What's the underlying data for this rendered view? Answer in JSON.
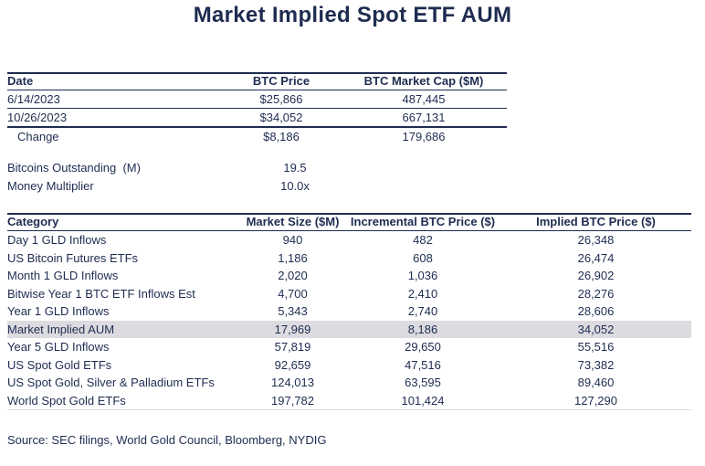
{
  "title": "Market Implied Spot ETF AUM",
  "table1": {
    "headers": [
      "Date",
      "BTC Price",
      "BTC Market Cap ($M)"
    ],
    "rows": [
      [
        "6/14/2023",
        "$25,866",
        "487,445"
      ],
      [
        "10/26/2023",
        "$34,052",
        "667,131"
      ]
    ],
    "change_row": [
      "Change",
      "$8,186",
      "179,686"
    ]
  },
  "assumptions": [
    {
      "label": "Bitcoins Outstanding  (M)",
      "value": "19.5"
    },
    {
      "label": "Money Multiplier",
      "value": "10.0x"
    }
  ],
  "table2": {
    "headers": [
      "Category",
      "Market Size ($M)",
      "Incremental BTC Price ($)",
      "Implied BTC Price ($)"
    ],
    "rows": [
      {
        "cells": [
          "Day 1 GLD Inflows",
          "940",
          "482",
          "26,348"
        ],
        "highlight": false
      },
      {
        "cells": [
          "US Bitcoin Futures ETFs",
          "1,186",
          "608",
          "26,474"
        ],
        "highlight": false
      },
      {
        "cells": [
          "Month 1 GLD Inflows",
          "2,020",
          "1,036",
          "26,902"
        ],
        "highlight": false
      },
      {
        "cells": [
          "Bitwise Year 1 BTC ETF Inflows Est",
          "4,700",
          "2,410",
          "28,276"
        ],
        "highlight": false
      },
      {
        "cells": [
          "Year 1 GLD Inflows",
          "5,343",
          "2,740",
          "28,606"
        ],
        "highlight": false
      },
      {
        "cells": [
          "Market Implied AUM",
          "17,969",
          "8,186",
          "34,052"
        ],
        "highlight": true
      },
      {
        "cells": [
          "Year 5 GLD Inflows",
          "57,819",
          "29,650",
          "55,516"
        ],
        "highlight": false
      },
      {
        "cells": [
          "US Spot Gold ETFs",
          "92,659",
          "47,516",
          "73,382"
        ],
        "highlight": false
      },
      {
        "cells": [
          "US Spot Gold, Silver & Palladium ETFs",
          "124,013",
          "63,595",
          "89,460"
        ],
        "highlight": false
      },
      {
        "cells": [
          "World Spot Gold ETFs",
          "197,782",
          "101,424",
          "127,290"
        ],
        "highlight": false
      }
    ]
  },
  "source": "Source: SEC filings, World Gold Council, Bloomberg, NYDIG",
  "colors": {
    "text": "#1f2c51",
    "highlight_row": "#dcdce0",
    "table_bottom_rule": "#d9d9d9"
  }
}
